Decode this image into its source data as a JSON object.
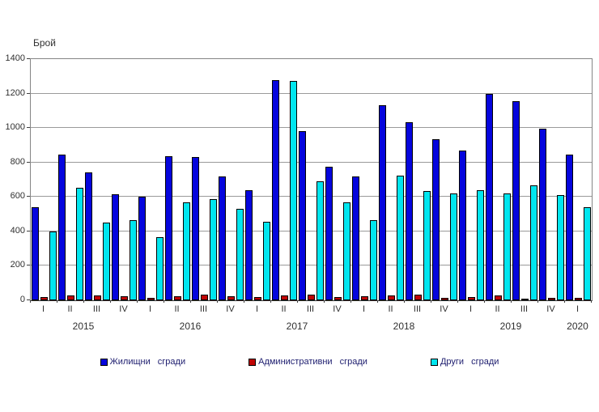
{
  "chart_data": {
    "type": "bar",
    "title": "",
    "ylabel": "Брой",
    "xlabel": "",
    "ylim": [
      0,
      1400
    ],
    "ytick_step": 200,
    "yticks": [
      0,
      200,
      400,
      600,
      800,
      1000,
      1200,
      1400
    ],
    "grid": true,
    "legend_position": "bottom",
    "categories": [
      "I",
      "II",
      "III",
      "IV",
      "I",
      "II",
      "III",
      "IV",
      "I",
      "II",
      "III",
      "IV",
      "I",
      "II",
      "III",
      "IV",
      "I",
      "II",
      "III",
      "IV",
      "I"
    ],
    "year_groups": [
      {
        "label": "2015",
        "start": 0,
        "span": 4
      },
      {
        "label": "2016",
        "start": 4,
        "span": 4
      },
      {
        "label": "2017",
        "start": 8,
        "span": 4
      },
      {
        "label": "2018",
        "start": 12,
        "span": 4
      },
      {
        "label": "2019",
        "start": 16,
        "span": 4
      },
      {
        "label": "2020",
        "start": 20,
        "span": 1
      }
    ],
    "series": [
      {
        "name": "Жилищни сгради",
        "color": "#0505dd",
        "values": [
          540,
          845,
          740,
          615,
          600,
          835,
          830,
          720,
          640,
          1280,
          980,
          775,
          720,
          1130,
          1035,
          935,
          870,
          1200,
          1155,
          995,
          845
        ]
      },
      {
        "name": "Административни сгради",
        "color": "#c00505",
        "values": [
          20,
          30,
          28,
          22,
          15,
          22,
          35,
          25,
          20,
          28,
          35,
          18,
          22,
          28,
          32,
          12,
          18,
          28,
          10,
          12,
          15
        ]
      },
      {
        "name": "Други сгради",
        "color": "#00e6ef",
        "values": [
          400,
          655,
          450,
          465,
          365,
          570,
          585,
          530,
          455,
          1275,
          690,
          570,
          465,
          725,
          635,
          620,
          640,
          620,
          665,
          610,
          540
        ]
      }
    ]
  }
}
